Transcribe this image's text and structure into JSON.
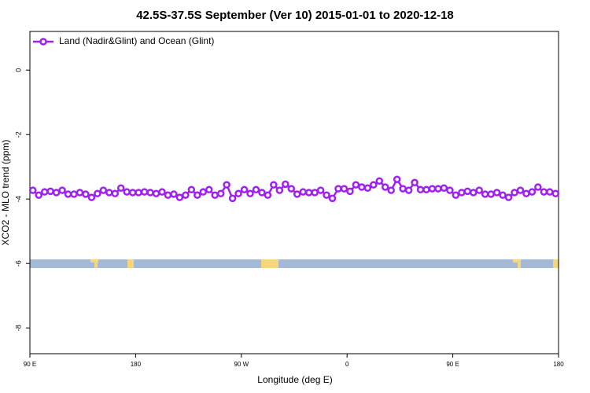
{
  "chart_data": {
    "type": "line",
    "title": "42.5S-37.5S September (Ver 10)   2015-01-01 to 2020-12-18",
    "x_label": "Longitude (deg E)",
    "y_label": "XCO2 - MLO trend (ppm)",
    "xlim": [
      90,
      540
    ],
    "ylim": [
      -8.8,
      1.2
    ],
    "xticks": [
      {
        "value": 90,
        "label": "90 E"
      },
      {
        "value": 180,
        "label": "180"
      },
      {
        "value": 270,
        "label": "90 W"
      },
      {
        "value": 360,
        "label": "0"
      },
      {
        "value": 450,
        "label": "90 E"
      },
      {
        "value": 540,
        "label": "180"
      }
    ],
    "yticks": [
      -8,
      -6,
      -4,
      -2,
      0
    ],
    "legend": "top-left",
    "series": [
      {
        "name": "Land (Nadir&Glint) and Ocean (Glint)",
        "color": "#a020f0",
        "x": [
          92.5,
          97.5,
          102.5,
          107.5,
          112.5,
          117.5,
          122.5,
          127.5,
          132.5,
          137.5,
          142.5,
          147.5,
          152.5,
          157.5,
          162.5,
          167.5,
          172.5,
          177.5,
          182.5,
          187.5,
          192.5,
          197.5,
          202.5,
          207.5,
          212.5,
          217.5,
          222.5,
          227.5,
          232.5,
          237.5,
          242.5,
          247.5,
          252.5,
          257.5,
          262.5,
          267.5,
          272.5,
          277.5,
          282.5,
          287.5,
          292.5,
          297.5,
          302.5,
          307.5,
          312.5,
          317.5,
          322.5,
          327.5,
          332.5,
          337.5,
          342.5,
          347.5,
          352.5,
          357.5,
          362.5,
          367.5,
          372.5,
          377.5,
          382.5,
          387.5,
          392.5,
          397.5,
          402.5,
          407.5,
          412.5,
          417.5,
          422.5,
          427.5,
          432.5,
          437.5,
          442.5,
          447.5,
          452.5,
          457.5,
          462.5,
          467.5,
          472.5,
          477.5,
          482.5,
          487.5,
          492.5,
          497.5,
          502.5,
          507.5,
          512.5,
          517.5,
          522.5,
          527.5,
          532.5,
          537.5
        ],
        "values": [
          -3.73,
          -3.88,
          -3.78,
          -3.76,
          -3.8,
          -3.73,
          -3.85,
          -3.85,
          -3.8,
          -3.85,
          -3.95,
          -3.83,
          -3.73,
          -3.8,
          -3.83,
          -3.66,
          -3.78,
          -3.8,
          -3.8,
          -3.78,
          -3.8,
          -3.83,
          -3.78,
          -3.88,
          -3.85,
          -3.95,
          -3.88,
          -3.71,
          -3.88,
          -3.78,
          -3.71,
          -3.88,
          -3.83,
          -3.56,
          -3.98,
          -3.83,
          -3.71,
          -3.83,
          -3.71,
          -3.8,
          -3.88,
          -3.56,
          -3.73,
          -3.54,
          -3.68,
          -3.85,
          -3.78,
          -3.8,
          -3.8,
          -3.73,
          -3.88,
          -3.98,
          -3.68,
          -3.68,
          -3.76,
          -3.56,
          -3.63,
          -3.66,
          -3.56,
          -3.44,
          -3.63,
          -3.73,
          -3.39,
          -3.68,
          -3.73,
          -3.49,
          -3.71,
          -3.71,
          -3.68,
          -3.68,
          -3.66,
          -3.73,
          -3.88,
          -3.8,
          -3.76,
          -3.8,
          -3.73,
          -3.85,
          -3.85,
          -3.8,
          -3.88,
          -3.95,
          -3.8,
          -3.73,
          -3.83,
          -3.78,
          -3.63,
          -3.78,
          -3.78,
          -3.83
        ]
      }
    ]
  }
}
